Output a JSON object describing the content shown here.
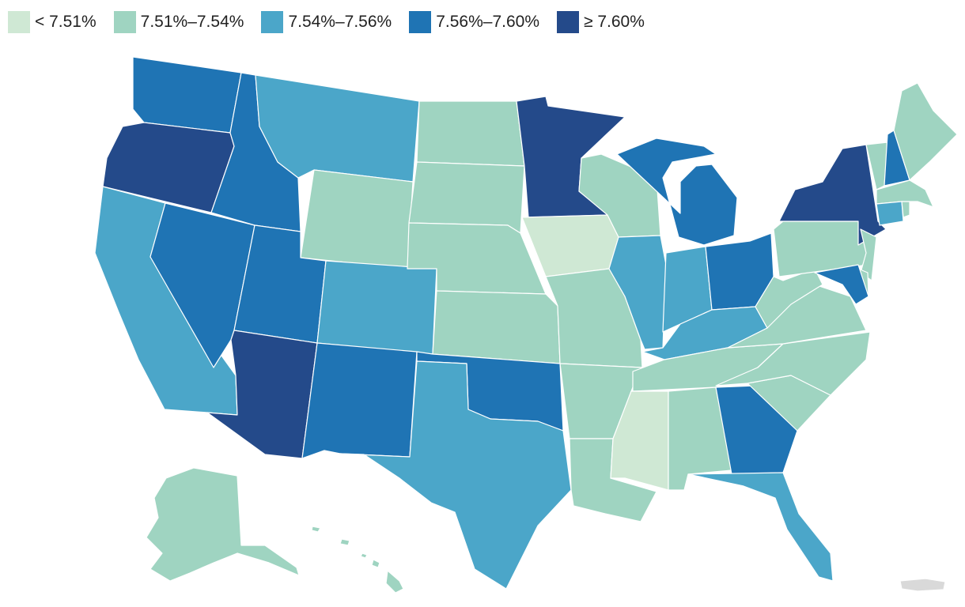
{
  "legend": {
    "items": [
      {
        "label": "< 7.51%",
        "color": "#cfe8d4"
      },
      {
        "label": "7.51%–7.54%",
        "color": "#9fd4c1"
      },
      {
        "label": "7.54%–7.56%",
        "color": "#4ba6c9"
      },
      {
        "label": "7.56%–7.60%",
        "color": "#1f74b4"
      },
      {
        "label": "≥ 7.60%",
        "color": "#244a8a"
      }
    ]
  },
  "no_data_color": "#d9d9d9",
  "states": [
    {
      "code": "WA",
      "bin": 3
    },
    {
      "code": "OR",
      "bin": 4
    },
    {
      "code": "CA",
      "bin": 2
    },
    {
      "code": "NV",
      "bin": 3
    },
    {
      "code": "ID",
      "bin": 3
    },
    {
      "code": "MT",
      "bin": 2
    },
    {
      "code": "WY",
      "bin": 1
    },
    {
      "code": "UT",
      "bin": 3
    },
    {
      "code": "AZ",
      "bin": 4
    },
    {
      "code": "CO",
      "bin": 2
    },
    {
      "code": "NM",
      "bin": 3
    },
    {
      "code": "ND",
      "bin": 1
    },
    {
      "code": "SD",
      "bin": 1
    },
    {
      "code": "NE",
      "bin": 1
    },
    {
      "code": "KS",
      "bin": 1
    },
    {
      "code": "OK",
      "bin": 3
    },
    {
      "code": "TX",
      "bin": 2
    },
    {
      "code": "MN",
      "bin": 4
    },
    {
      "code": "IA",
      "bin": 0
    },
    {
      "code": "MO",
      "bin": 1
    },
    {
      "code": "AR",
      "bin": 1
    },
    {
      "code": "LA",
      "bin": 1
    },
    {
      "code": "WI",
      "bin": 1
    },
    {
      "code": "IL",
      "bin": 2
    },
    {
      "code": "MI",
      "bin": 3
    },
    {
      "code": "IN",
      "bin": 2
    },
    {
      "code": "OH",
      "bin": 3
    },
    {
      "code": "KY",
      "bin": 2
    },
    {
      "code": "TN",
      "bin": 1
    },
    {
      "code": "MS",
      "bin": 0
    },
    {
      "code": "AL",
      "bin": 1
    },
    {
      "code": "GA",
      "bin": 3
    },
    {
      "code": "FL",
      "bin": 2
    },
    {
      "code": "SC",
      "bin": 1
    },
    {
      "code": "NC",
      "bin": 1
    },
    {
      "code": "VA",
      "bin": 1
    },
    {
      "code": "WV",
      "bin": 1
    },
    {
      "code": "PA",
      "bin": 1
    },
    {
      "code": "NY",
      "bin": 4
    },
    {
      "code": "NJ",
      "bin": 1
    },
    {
      "code": "DE",
      "bin": 1
    },
    {
      "code": "MD",
      "bin": 3
    },
    {
      "code": "VT",
      "bin": 1
    },
    {
      "code": "NH",
      "bin": 3
    },
    {
      "code": "ME",
      "bin": 1
    },
    {
      "code": "MA",
      "bin": 1
    },
    {
      "code": "CT",
      "bin": 2
    },
    {
      "code": "RI",
      "bin": 1
    },
    {
      "code": "AK",
      "bin": 1
    },
    {
      "code": "HI",
      "bin": 1
    },
    {
      "code": "PR",
      "bin": null
    }
  ]
}
